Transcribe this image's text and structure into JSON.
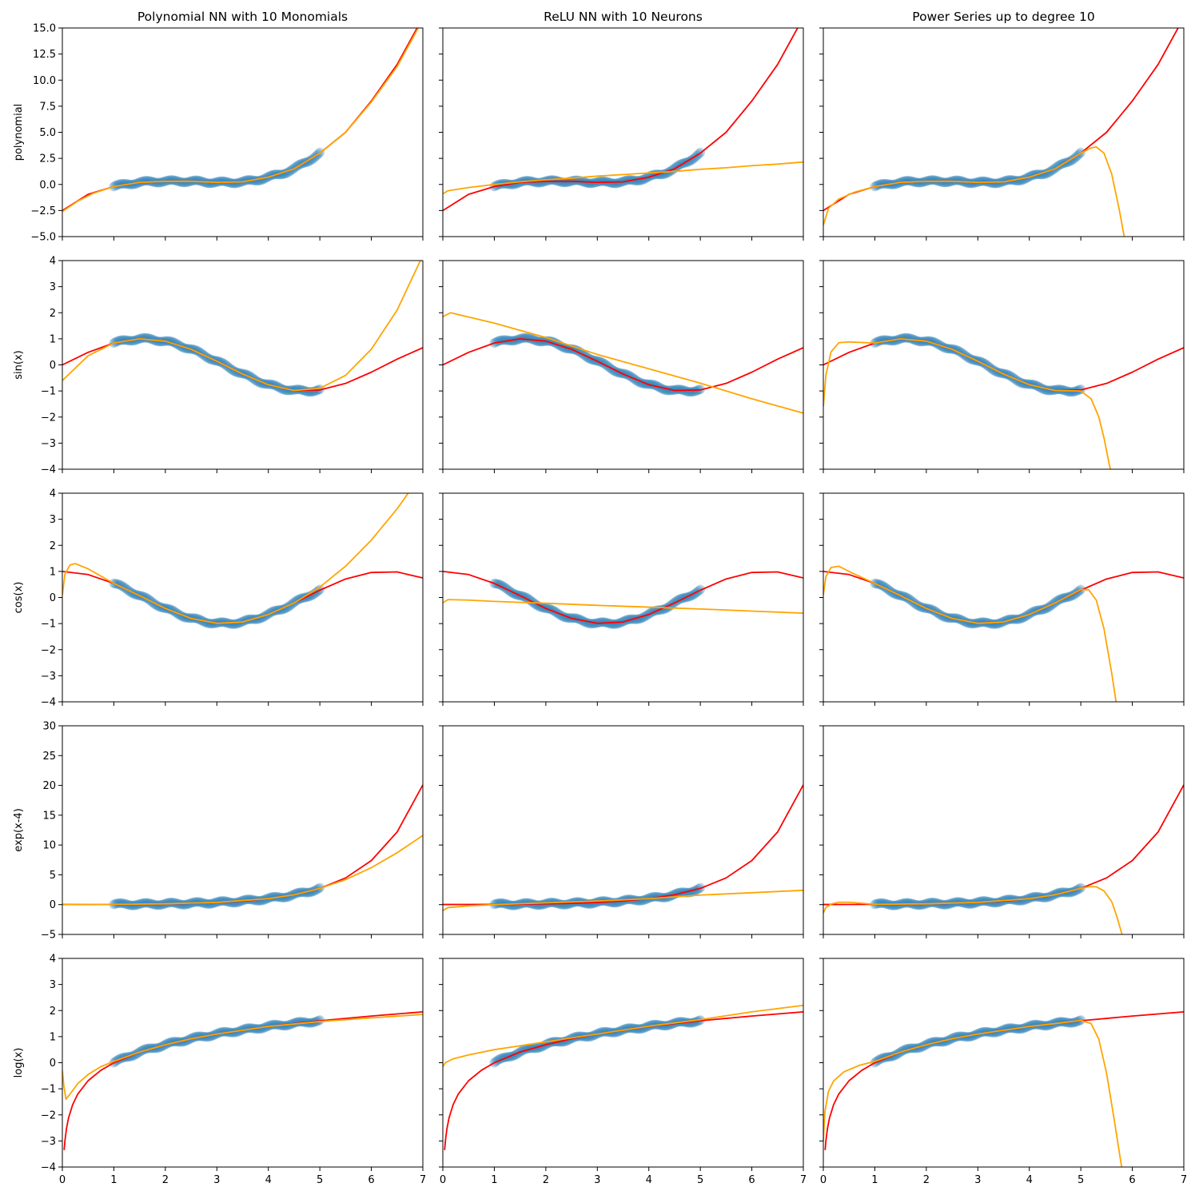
{
  "colors": {
    "data": "#1f77b4",
    "true_function": "#ff0000",
    "fit": "#ffa500",
    "axes": "#000000"
  },
  "x_range": [
    0,
    7
  ],
  "x_ticks": [
    0,
    1,
    2,
    3,
    4,
    5,
    6,
    7
  ],
  "chart_data": {
    "type": "line",
    "grid": false,
    "column_titles": [
      "Polynomial NN with 10 Monomials",
      "ReLU NN with 10 Neurons",
      "Power Series up to degree 10"
    ],
    "rows": [
      {
        "ylabel": "polynomial",
        "ylim": [
          -5,
          15
        ],
        "yticks": [
          -5.0,
          -2.5,
          0.0,
          2.5,
          5.0,
          7.5,
          10.0,
          12.5,
          15.0
        ],
        "ytick_labels": [
          "−5.0",
          "−2.5",
          "0.0",
          "2.5",
          "5.0",
          "7.5",
          "10.0",
          "12.5",
          "15.0"
        ],
        "true_function": {
          "x": [
            0,
            0.5,
            1,
            1.5,
            2,
            2.5,
            3,
            3.5,
            4,
            4.5,
            5,
            5.5,
            6,
            6.5,
            7
          ],
          "y": [
            -2.5,
            -0.95,
            -0.2,
            0.2,
            0.3,
            0.3,
            0.2,
            0.25,
            0.7,
            1.5,
            3.0,
            5.0,
            8.0,
            11.5,
            16.0
          ]
        },
        "data_points": {
          "x": [
            1,
            1.25,
            1.5,
            1.75,
            2,
            2.25,
            2.5,
            2.75,
            3,
            3.25,
            3.5,
            3.75,
            4,
            4.25,
            4.5,
            4.75,
            5
          ],
          "y": [
            -0.2,
            0.05,
            0.2,
            0.28,
            0.3,
            0.32,
            0.3,
            0.25,
            0.2,
            0.2,
            0.25,
            0.4,
            0.7,
            1.0,
            1.5,
            2.2,
            3.0
          ]
        },
        "fits": [
          {
            "x": [
              0,
              0.3,
              0.6,
              1,
              1.5,
              2,
              2.5,
              3,
              3.5,
              4,
              4.5,
              5,
              5.5,
              6,
              6.5,
              7
            ],
            "y": [
              -2.6,
              -1.6,
              -0.85,
              -0.2,
              0.2,
              0.3,
              0.3,
              0.2,
              0.25,
              0.7,
              1.5,
              3.0,
              5.0,
              7.9,
              11.3,
              15.8
            ]
          },
          {
            "x": [
              0,
              0.1,
              0.5,
              1,
              1.5,
              2,
              2.5,
              3,
              3.5,
              4,
              4.5,
              5,
              5.5,
              6,
              6.5,
              7
            ],
            "y": [
              -0.9,
              -0.6,
              -0.3,
              0.0,
              0.25,
              0.45,
              0.6,
              0.8,
              0.95,
              1.1,
              1.25,
              1.45,
              1.6,
              1.8,
              1.95,
              2.15
            ]
          },
          {
            "x": [
              0,
              0.1,
              0.3,
              0.6,
              1,
              1.5,
              2,
              2.5,
              3,
              3.5,
              4,
              4.5,
              5,
              5.2,
              5.3,
              5.45,
              5.6,
              5.75,
              5.85
            ],
            "y": [
              -3.9,
              -2.3,
              -1.4,
              -0.75,
              -0.2,
              0.2,
              0.3,
              0.3,
              0.2,
              0.25,
              0.7,
              1.5,
              3.0,
              3.5,
              3.6,
              3.0,
              1.0,
              -2.5,
              -5.2
            ]
          }
        ]
      },
      {
        "ylabel": "sin(x)",
        "ylim": [
          -4,
          4
        ],
        "yticks": [
          -4,
          -3,
          -2,
          -1,
          0,
          1,
          2,
          3,
          4
        ],
        "ytick_labels": [
          "−4",
          "−3",
          "−2",
          "−1",
          "0",
          "1",
          "2",
          "3",
          "4"
        ],
        "true_function": {
          "x": [
            0,
            0.5,
            1,
            1.5,
            2,
            2.5,
            3,
            3.5,
            4,
            4.5,
            5,
            5.5,
            6,
            6.5,
            7
          ],
          "y": [
            0,
            0.48,
            0.84,
            1.0,
            0.91,
            0.6,
            0.14,
            -0.35,
            -0.76,
            -0.98,
            -0.96,
            -0.71,
            -0.28,
            0.22,
            0.66
          ]
        },
        "data_points": {
          "x": [
            1,
            1.25,
            1.5,
            1.75,
            2,
            2.25,
            2.5,
            2.75,
            3,
            3.25,
            3.5,
            3.75,
            4,
            4.25,
            4.5,
            4.75,
            5
          ],
          "y": [
            0.84,
            0.95,
            1.0,
            0.98,
            0.91,
            0.78,
            0.6,
            0.38,
            0.14,
            -0.11,
            -0.35,
            -0.57,
            -0.76,
            -0.89,
            -0.98,
            -1.0,
            -0.96
          ]
        },
        "fits": [
          {
            "x": [
              0,
              0.5,
              1,
              1.5,
              2,
              2.5,
              3,
              3.5,
              4,
              4.5,
              5,
              5.5,
              6,
              6.5,
              7
            ],
            "y": [
              -0.6,
              0.35,
              0.84,
              1.0,
              0.91,
              0.6,
              0.14,
              -0.35,
              -0.76,
              -0.98,
              -0.9,
              -0.4,
              0.6,
              2.1,
              4.2
            ]
          },
          {
            "x": [
              0,
              0.15,
              1,
              2,
              3,
              4,
              5,
              6,
              7
            ],
            "y": [
              1.85,
              2.0,
              1.6,
              1.05,
              0.4,
              -0.15,
              -0.7,
              -1.3,
              -1.85
            ]
          },
          {
            "x": [
              0,
              0.05,
              0.15,
              0.3,
              0.5,
              1,
              1.5,
              2,
              2.5,
              3,
              3.5,
              4,
              4.5,
              5,
              5.2,
              5.35,
              5.45,
              5.55,
              5.6
            ],
            "y": [
              -1.6,
              -0.4,
              0.5,
              0.85,
              0.88,
              0.84,
              1.0,
              0.91,
              0.6,
              0.14,
              -0.35,
              -0.76,
              -0.98,
              -1.0,
              -1.3,
              -2.0,
              -2.8,
              -3.8,
              -4.2
            ]
          }
        ]
      },
      {
        "ylabel": "cos(x)",
        "ylim": [
          -4,
          4
        ],
        "yticks": [
          -4,
          -3,
          -2,
          -1,
          0,
          1,
          2,
          3,
          4
        ],
        "ytick_labels": [
          "−4",
          "−3",
          "−2",
          "−1",
          "0",
          "1",
          "2",
          "3",
          "4"
        ],
        "true_function": {
          "x": [
            0,
            0.5,
            1,
            1.5,
            2,
            2.5,
            3,
            3.5,
            4,
            4.5,
            5,
            5.5,
            6,
            6.5,
            7
          ],
          "y": [
            1.0,
            0.88,
            0.54,
            0.07,
            -0.42,
            -0.8,
            -0.99,
            -0.94,
            -0.65,
            -0.21,
            0.28,
            0.71,
            0.96,
            0.98,
            0.75
          ]
        },
        "data_points": {
          "x": [
            1,
            1.25,
            1.5,
            1.75,
            2,
            2.25,
            2.5,
            2.75,
            3,
            3.25,
            3.5,
            3.75,
            4,
            4.25,
            4.5,
            4.75,
            5
          ],
          "y": [
            0.54,
            0.32,
            0.07,
            -0.18,
            -0.42,
            -0.63,
            -0.8,
            -0.92,
            -0.99,
            -0.99,
            -0.94,
            -0.82,
            -0.65,
            -0.45,
            -0.21,
            0.04,
            0.28
          ]
        },
        "fits": [
          {
            "x": [
              0,
              0.05,
              0.15,
              0.25,
              0.5,
              1,
              1.5,
              2,
              2.5,
              3,
              3.5,
              4,
              4.5,
              5,
              5.5,
              6,
              6.5,
              7
            ],
            "y": [
              0.1,
              0.9,
              1.25,
              1.3,
              1.1,
              0.54,
              0.07,
              -0.42,
              -0.8,
              -0.99,
              -0.94,
              -0.65,
              -0.21,
              0.4,
              1.2,
              2.2,
              3.4,
              4.8
            ]
          },
          {
            "x": [
              0,
              0.1,
              0.5,
              1,
              2,
              3,
              4,
              5,
              6,
              7
            ],
            "y": [
              -0.2,
              -0.08,
              -0.1,
              -0.15,
              -0.22,
              -0.3,
              -0.37,
              -0.44,
              -0.52,
              -0.6
            ]
          },
          {
            "x": [
              0,
              0.05,
              0.15,
              0.3,
              0.5,
              1,
              1.5,
              2,
              2.5,
              3,
              3.5,
              4,
              4.5,
              5,
              5.15,
              5.3,
              5.45,
              5.6,
              5.7
            ],
            "y": [
              0.1,
              0.8,
              1.15,
              1.2,
              1.0,
              0.54,
              0.07,
              -0.42,
              -0.8,
              -0.99,
              -0.94,
              -0.65,
              -0.21,
              0.3,
              0.3,
              -0.1,
              -1.2,
              -2.9,
              -4.2
            ]
          }
        ]
      },
      {
        "ylabel": "exp(x-4)",
        "ylim": [
          -5,
          30
        ],
        "yticks": [
          -5,
          0,
          5,
          10,
          15,
          20,
          25,
          30
        ],
        "ytick_labels": [
          "−5",
          "0",
          "5",
          "10",
          "15",
          "20",
          "25",
          "30"
        ],
        "true_function": {
          "x": [
            0,
            0.5,
            1,
            1.5,
            2,
            2.5,
            3,
            3.5,
            4,
            4.5,
            5,
            5.5,
            6,
            6.5,
            7
          ],
          "y": [
            0.02,
            0.03,
            0.05,
            0.08,
            0.14,
            0.22,
            0.37,
            0.61,
            1.0,
            1.65,
            2.72,
            4.48,
            7.39,
            12.18,
            20.09
          ]
        },
        "data_points": {
          "x": [
            1,
            1.25,
            1.5,
            1.75,
            2,
            2.25,
            2.5,
            2.75,
            3,
            3.25,
            3.5,
            3.75,
            4,
            4.25,
            4.5,
            4.75,
            5
          ],
          "y": [
            0.05,
            0.06,
            0.08,
            0.11,
            0.14,
            0.17,
            0.22,
            0.29,
            0.37,
            0.47,
            0.61,
            0.78,
            1.0,
            1.28,
            1.65,
            2.12,
            2.72
          ]
        },
        "fits": [
          {
            "x": [
              0,
              0.5,
              1,
              2,
              3,
              4,
              4.5,
              5,
              5.5,
              6,
              6.5,
              7
            ],
            "y": [
              0.0,
              0.05,
              0.05,
              0.14,
              0.37,
              1.0,
              1.65,
              2.72,
              4.2,
              6.2,
              8.7,
              11.6
            ]
          },
          {
            "x": [
              0,
              0.1,
              0.5,
              1,
              2,
              3,
              4,
              5,
              6,
              7
            ],
            "y": [
              -1.0,
              -0.5,
              -0.2,
              0.0,
              0.3,
              0.6,
              1.0,
              1.6,
              2.0,
              2.4
            ]
          },
          {
            "x": [
              0,
              0.05,
              0.15,
              0.3,
              0.5,
              0.8,
              1,
              2,
              3,
              4,
              4.5,
              5,
              5.15,
              5.3,
              5.45,
              5.6,
              5.7,
              5.8
            ],
            "y": [
              -1.4,
              -0.5,
              0.1,
              0.4,
              0.4,
              0.2,
              0.05,
              0.14,
              0.37,
              1.0,
              1.65,
              2.72,
              3.0,
              3.0,
              2.3,
              0.5,
              -2.0,
              -5.0
            ]
          }
        ]
      },
      {
        "ylabel": "log(x)",
        "ylim": [
          -4,
          4
        ],
        "yticks": [
          -4,
          -3,
          -2,
          -1,
          0,
          1,
          2,
          3,
          4
        ],
        "ytick_labels": [
          "−4",
          "−3",
          "−2",
          "−1",
          "0",
          "1",
          "2",
          "3",
          "4"
        ],
        "true_function": {
          "x": [
            0.035,
            0.05,
            0.08,
            0.12,
            0.2,
            0.3,
            0.5,
            0.75,
            1,
            1.5,
            2,
            2.5,
            3,
            4,
            5,
            6,
            7
          ],
          "y": [
            -3.35,
            -3.0,
            -2.53,
            -2.12,
            -1.61,
            -1.2,
            -0.69,
            -0.29,
            0.0,
            0.41,
            0.69,
            0.92,
            1.1,
            1.39,
            1.61,
            1.79,
            1.95
          ]
        },
        "data_points": {
          "x": [
            1,
            1.25,
            1.5,
            1.75,
            2,
            2.25,
            2.5,
            2.75,
            3,
            3.25,
            3.5,
            3.75,
            4,
            4.25,
            4.5,
            4.75,
            5
          ],
          "y": [
            0.0,
            0.22,
            0.41,
            0.56,
            0.69,
            0.81,
            0.92,
            1.01,
            1.1,
            1.18,
            1.25,
            1.32,
            1.39,
            1.45,
            1.5,
            1.56,
            1.61
          ]
        },
        "fits": [
          {
            "x": [
              0,
              0.03,
              0.07,
              0.15,
              0.3,
              0.5,
              0.75,
              1,
              1.5,
              2,
              2.5,
              3,
              4,
              5,
              6,
              7
            ],
            "y": [
              -0.3,
              -0.9,
              -1.4,
              -1.2,
              -0.8,
              -0.45,
              -0.15,
              0.05,
              0.41,
              0.69,
              0.92,
              1.1,
              1.39,
              1.58,
              1.72,
              1.85
            ]
          },
          {
            "x": [
              0,
              0.05,
              0.2,
              0.5,
              1,
              2,
              3,
              4,
              5,
              6,
              7
            ],
            "y": [
              -0.15,
              0.0,
              0.15,
              0.3,
              0.5,
              0.8,
              1.1,
              1.4,
              1.65,
              1.95,
              2.2
            ]
          },
          {
            "x": [
              0,
              0.03,
              0.1,
              0.2,
              0.4,
              0.7,
              1,
              1.5,
              2,
              2.5,
              3,
              4,
              4.5,
              5,
              5.2,
              5.35,
              5.5,
              5.65,
              5.8
            ],
            "y": [
              -3.0,
              -1.9,
              -1.1,
              -0.7,
              -0.35,
              -0.1,
              0.05,
              0.41,
              0.69,
              0.92,
              1.1,
              1.39,
              1.5,
              1.62,
              1.5,
              0.9,
              -0.4,
              -2.2,
              -4.1
            ]
          }
        ]
      }
    ]
  }
}
